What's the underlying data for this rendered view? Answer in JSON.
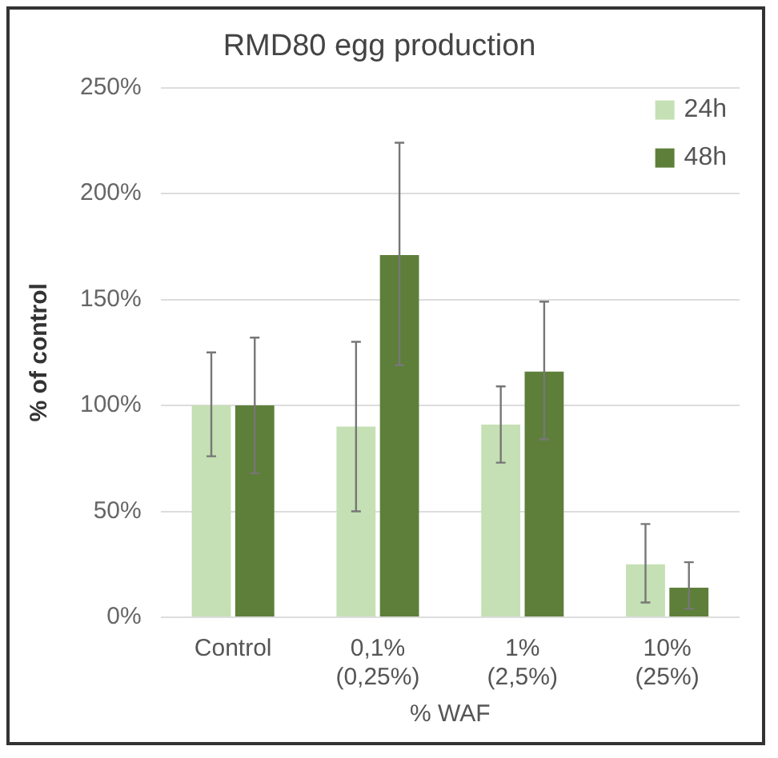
{
  "chart_data": {
    "type": "bar",
    "title": "RMD80 egg production",
    "xlabel": "% WAF",
    "ylabel": "% of control",
    "categories": [
      "Control",
      "0,1%\n(0,25%)",
      "1%\n(2,5%)",
      "10%\n(25%)"
    ],
    "series": [
      {
        "name": "24h",
        "color": "#c5e0b4",
        "values": [
          100,
          90,
          91,
          25
        ],
        "errors": [
          [
            76,
            125
          ],
          [
            50,
            130
          ],
          [
            73,
            109
          ],
          [
            7,
            44
          ]
        ]
      },
      {
        "name": "48h",
        "color": "#5e7f3a",
        "values": [
          100,
          171,
          116,
          14
        ],
        "errors": [
          [
            68,
            132
          ],
          [
            119,
            224
          ],
          [
            84,
            149
          ],
          [
            4,
            26
          ]
        ]
      }
    ],
    "ylim": [
      0,
      250
    ],
    "yticks": [
      {
        "value": 0,
        "label": "0%"
      },
      {
        "value": 50,
        "label": "50%"
      },
      {
        "value": 100,
        "label": "100%"
      },
      {
        "value": 150,
        "label": "150%"
      },
      {
        "value": 200,
        "label": "200%"
      },
      {
        "value": 250,
        "label": "250%"
      }
    ],
    "grid": "y",
    "legend": "top right"
  }
}
